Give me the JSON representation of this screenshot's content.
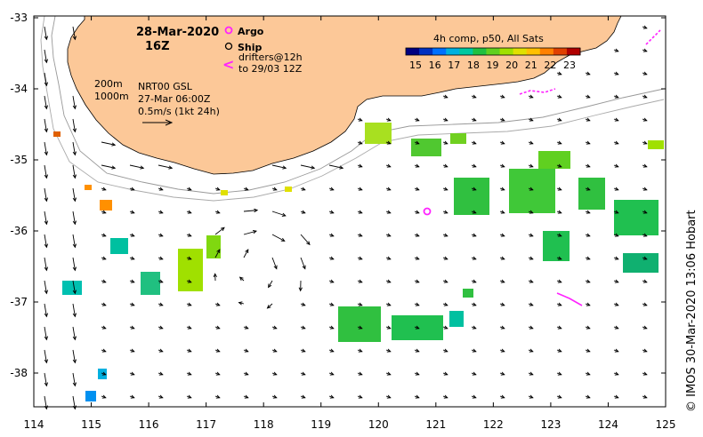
{
  "header": {
    "date": "28-Mar-2020",
    "time": "16Z"
  },
  "legend": {
    "argo_label": "Argo",
    "ship_label": "Ship",
    "drifters_line1": "drifters@12h",
    "drifters_line2": "to 29/03 12Z",
    "argo_color": "#ff22ff",
    "drifter_color": "#ff22ff"
  },
  "contour_labels": {
    "c200": "200m",
    "c1000": "1000m"
  },
  "product": {
    "line1": "NRT00 GSL",
    "line2": "27-Mar 06:00Z",
    "line3": "0.5m/s (1kt 24h)"
  },
  "colorbar": {
    "title": "4h comp, p50, All Sats",
    "ticks": [
      "15",
      "16",
      "17",
      "18",
      "19",
      "20",
      "21",
      "22",
      "23"
    ],
    "colors": [
      "#000080",
      "#0030c0",
      "#0070ff",
      "#00b0e0",
      "#00c8a0",
      "#20c040",
      "#60d020",
      "#a0e000",
      "#e0e000",
      "#ffc000",
      "#ff8000",
      "#e04000",
      "#b00000"
    ]
  },
  "axes": {
    "x_ticks": [
      "114",
      "115",
      "116",
      "117",
      "118",
      "119",
      "120",
      "121",
      "122",
      "123",
      "124",
      "125"
    ],
    "y_ticks": [
      "-33",
      "-34",
      "-35",
      "-36",
      "-37",
      "-38"
    ]
  },
  "credit": "© IMOS 30-Mar-2020 13:06 Hobart",
  "map": {
    "land_color": "#fcc898",
    "ocean_color": "#ffffff",
    "arrow_color": "#000000"
  }
}
